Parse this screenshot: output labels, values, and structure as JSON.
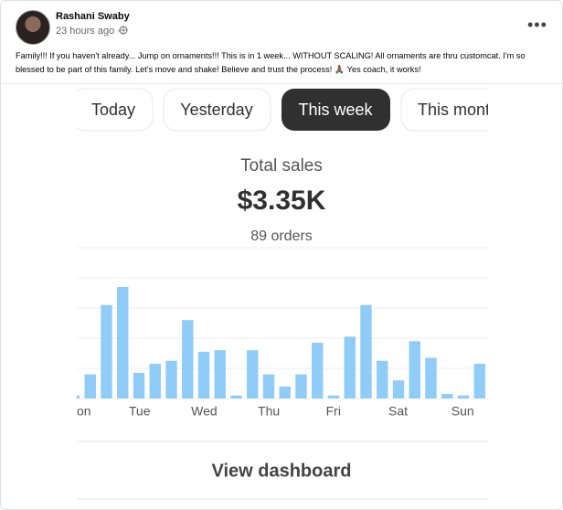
{
  "post": {
    "author": "Rashani Swaby",
    "time": "23 hours ago ·",
    "text": "Family!!! If you haven't already... Jump on ornaments!!! This is in 1 week... WITHOUT SCALING! All ornaments are thru customcat. I'm so blessed to be part of this family. Let's move and shake! Believe and trust the process! 🙏🏾 Yes coach, it works!"
  },
  "dashboard": {
    "tabs": [
      "Today",
      "Yesterday",
      "This week",
      "This mont"
    ],
    "summary_label": "Total sales",
    "total": "$3.35K",
    "orders": "89 orders",
    "chart": {
      "type": "bar",
      "color": "#8fcdf8",
      "values": [
        0.1,
        0.8,
        3.1,
        3.7,
        0.85,
        1.15,
        1.25,
        2.6,
        1.55,
        1.6,
        0.1,
        1.6,
        0.8,
        0.4,
        0.8,
        1.85,
        0.1,
        2.05,
        3.1,
        1.25,
        0.6,
        1.9,
        1.35,
        0.15,
        0.1,
        1.15
      ],
      "ylim": [
        0,
        5
      ],
      "yticks": [
        0,
        1,
        2,
        3,
        4,
        5
      ],
      "grid": true,
      "day_labels": [
        "on",
        "Tue",
        "Wed",
        "Thu",
        "Fri",
        "Sat",
        "Sun"
      ]
    },
    "button": "View dashboard"
  }
}
